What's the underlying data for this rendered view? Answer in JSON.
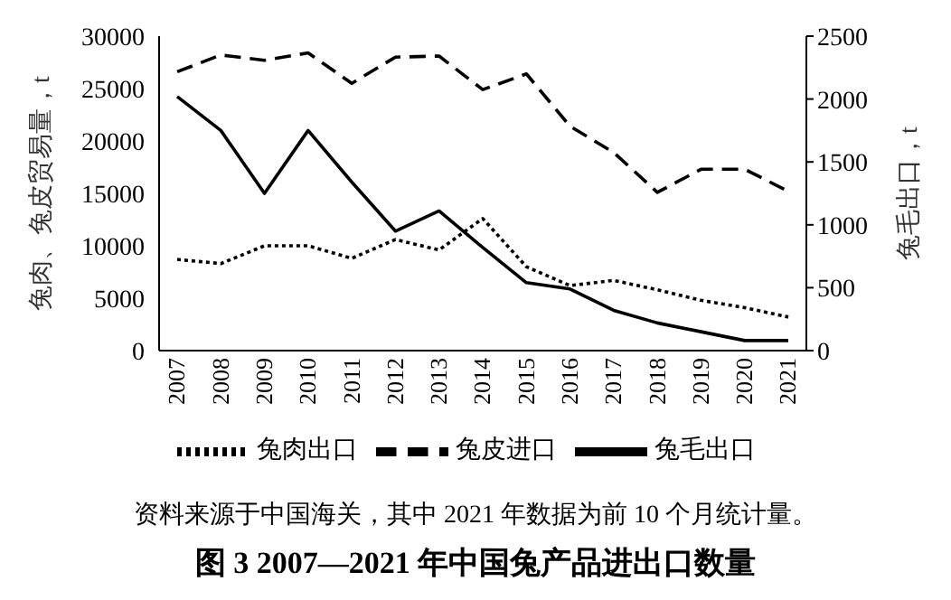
{
  "chart_data": {
    "type": "line",
    "title": "图 3 2007—2021 年中国兔产品进出口数量",
    "ylabel": "兔肉、兔皮贸易量，t",
    "y2label": "兔毛出口，t",
    "annotations": [
      "资料来源于中国海关，其中 2021 年数据为前 10 个月统计量。"
    ],
    "categories": [
      "2007",
      "2008",
      "2009",
      "2010",
      "2011",
      "2012",
      "2013",
      "2014",
      "2015",
      "2016",
      "2017",
      "2018",
      "2019",
      "2020",
      "2021"
    ],
    "series": [
      {
        "name": "兔肉出口",
        "color": "#000000",
        "line_style": "dotted",
        "values": [
          8700,
          8300,
          10000,
          10000,
          8800,
          10600,
          9600,
          12600,
          8000,
          6200,
          6700,
          5800,
          4800,
          4100,
          3200
        ]
      },
      {
        "name": "兔皮进口",
        "color": "#000000",
        "line_style": "dashed",
        "values": [
          26600,
          28200,
          27700,
          28400,
          25500,
          28000,
          28100,
          24900,
          26400,
          21400,
          18900,
          15100,
          17300,
          17300,
          15200
        ]
      },
      {
        "name": "兔毛出口",
        "color": "#000000",
        "line_style": "solid",
        "axis": "y2",
        "values": [
          2020,
          1750,
          1250,
          1750,
          1340,
          950,
          1110,
          820,
          540,
          490,
          320,
          220,
          150,
          80,
          80
        ]
      }
    ],
    "ylim": [
      0,
      30000
    ],
    "yticks": [
      0,
      5000,
      10000,
      15000,
      20000,
      25000,
      30000
    ],
    "y2lim": [
      0,
      2500
    ],
    "y2ticks": [
      0,
      500,
      1000,
      1500,
      2000,
      2500
    ],
    "grid": false,
    "legend": "bottom",
    "marker": "none"
  }
}
